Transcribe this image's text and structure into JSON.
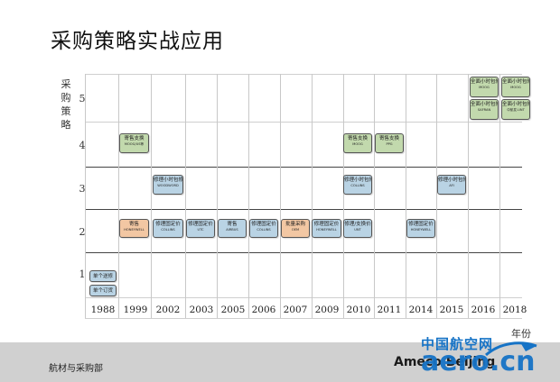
{
  "title": "采购策略实战应用",
  "y_axis": {
    "label": "采购策略",
    "levels": [
      "5",
      "4",
      "3",
      "2",
      "1"
    ]
  },
  "x_axis": {
    "years": [
      "1988",
      "1999",
      "2002",
      "2003",
      "2005",
      "2006",
      "2007",
      "2009",
      "2010",
      "2011",
      "2014",
      "2015",
      "2016",
      "2018"
    ],
    "unit": "年份"
  },
  "events": [
    {
      "main": "单个订货",
      "sub": "",
      "color": "blue"
    },
    {
      "main": "单个送修",
      "sub": "",
      "color": "blue"
    },
    {
      "main": "寄售",
      "sub": "HONEYWELL",
      "color": "orange"
    },
    {
      "main": "寄售支换",
      "sub": "MOOG/US等",
      "color": "green"
    },
    {
      "main": "修理小时包修",
      "sub": "WOODWORD",
      "color": "blue"
    },
    {
      "main": "修理固定价",
      "sub": "COLLINS",
      "color": "blue"
    },
    {
      "main": "修理固定价",
      "sub": "UTC",
      "color": "blue"
    },
    {
      "main": "寄售",
      "sub": "AIRBUS",
      "color": "blue"
    },
    {
      "main": "修理固定价",
      "sub": "COLLINS",
      "color": "blue"
    },
    {
      "main": "批量采购",
      "sub": "OEM",
      "color": "orange"
    },
    {
      "main": "修理固定价",
      "sub": "HONEYWELL",
      "color": "blue"
    },
    {
      "main": "修理/支换价",
      "sub": "UNT",
      "color": "blue"
    },
    {
      "main": "修理小时包修",
      "sub": "COLLINS",
      "color": "blue"
    },
    {
      "main": "寄售支换",
      "sub": "MOOG",
      "color": "green"
    },
    {
      "main": "寄售支换",
      "sub": "PPG",
      "color": "green"
    },
    {
      "main": "修理固定价",
      "sub": "HONEYWELL",
      "color": "blue"
    },
    {
      "main": "修理小时包修",
      "sub": "AFI",
      "color": "blue"
    },
    {
      "main": "全面小时包修",
      "sub": "MOOG",
      "color": "green"
    },
    {
      "main": "全面小时包修",
      "sub": "SAFRAN",
      "color": "green"
    },
    {
      "main": "全面小时包修",
      "sub": "MOOG",
      "color": "green"
    },
    {
      "main": "全面小时包修",
      "sub": "中航发-UNT",
      "color": "green"
    }
  ],
  "colors": {
    "green": "#c2d9ad",
    "blue": "#b9d3e4",
    "orange": "#f2c7a3"
  },
  "footer": {
    "department": "航材与采购部",
    "brand": "Ameco Beijing",
    "watermark_cn": "中国航空网",
    "watermark_en": "aero.cn"
  }
}
